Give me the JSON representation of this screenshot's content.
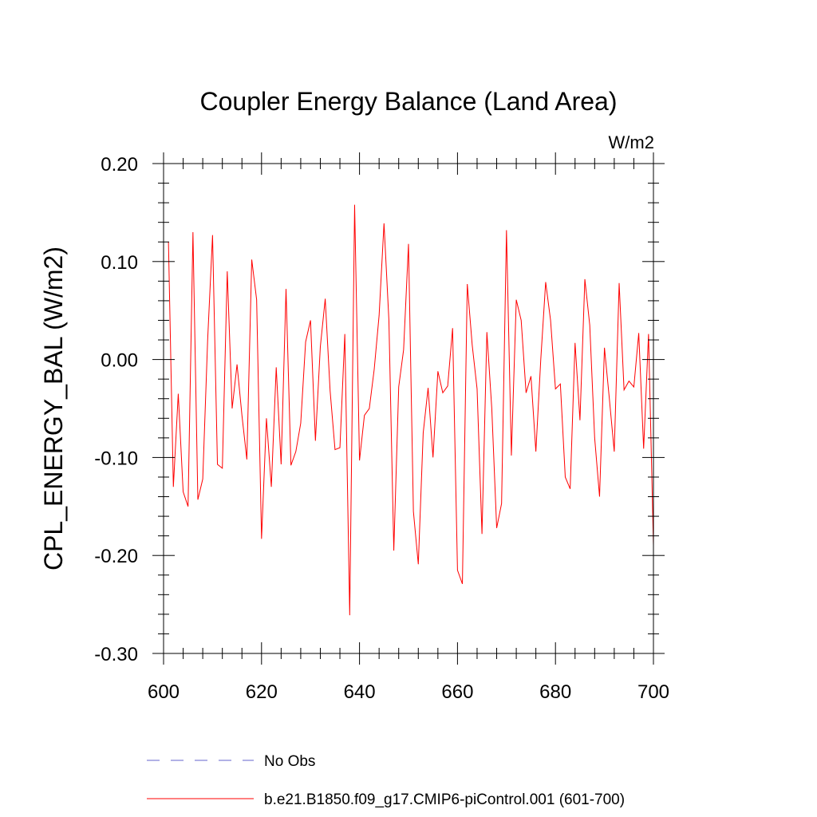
{
  "chart_data": {
    "type": "line",
    "title": "Coupler Energy Balance (Land Area)",
    "units_label": "W/m2",
    "xlabel": "",
    "ylabel": "CPL_ENERGY_BAL  (W/m2)",
    "xlim": [
      600,
      700
    ],
    "ylim": [
      -0.3,
      0.2
    ],
    "x_ticks": [
      600,
      620,
      640,
      660,
      680,
      700
    ],
    "x_tick_labels": [
      "600",
      "620",
      "640",
      "660",
      "680",
      "700"
    ],
    "y_ticks": [
      0.2,
      0.1,
      0.0,
      -0.1,
      -0.2,
      -0.3
    ],
    "y_tick_labels": [
      "0.20",
      "0.10",
      "0.00",
      "-0.10",
      "-0.20",
      "-0.30"
    ],
    "series": [
      {
        "name": "b.e21.B1850.f09_g17.CMIP6-piControl.001 (601-700)",
        "color": "#ff0000",
        "style": "solid",
        "x": [
          601,
          602,
          603,
          604,
          605,
          606,
          607,
          608,
          609,
          610,
          611,
          612,
          613,
          614,
          615,
          616,
          617,
          618,
          619,
          620,
          621,
          622,
          623,
          624,
          625,
          626,
          627,
          628,
          629,
          630,
          631,
          632,
          633,
          634,
          635,
          636,
          637,
          638,
          639,
          640,
          641,
          642,
          643,
          644,
          645,
          646,
          647,
          648,
          649,
          650,
          651,
          652,
          653,
          654,
          655,
          656,
          657,
          658,
          659,
          660,
          661,
          662,
          663,
          664,
          665,
          666,
          667,
          668,
          669,
          670,
          671,
          672,
          673,
          674,
          675,
          676,
          677,
          678,
          679,
          680,
          681,
          682,
          683,
          684,
          685,
          686,
          687,
          688,
          689,
          690,
          691,
          692,
          693,
          694,
          695,
          696,
          697,
          698,
          699,
          700
        ],
        "values": [
          0.12,
          -0.13,
          -0.035,
          -0.135,
          -0.15,
          0.13,
          -0.143,
          -0.122,
          0.02,
          0.127,
          -0.107,
          -0.111,
          0.09,
          -0.05,
          -0.005,
          -0.057,
          -0.102,
          0.102,
          0.061,
          -0.183,
          -0.06,
          -0.13,
          -0.008,
          -0.107,
          0.072,
          -0.108,
          -0.094,
          -0.065,
          0.018,
          0.04,
          -0.083,
          0.013,
          0.062,
          -0.032,
          -0.092,
          -0.09,
          0.026,
          -0.261,
          0.158,
          -0.103,
          -0.057,
          -0.05,
          -0.01,
          0.045,
          0.139,
          0.04,
          -0.195,
          -0.028,
          0.01,
          0.118,
          -0.155,
          -0.209,
          -0.075,
          -0.029,
          -0.1,
          -0.012,
          -0.034,
          -0.027,
          0.032,
          -0.215,
          -0.229,
          0.077,
          0.015,
          -0.03,
          -0.178,
          0.028,
          -0.05,
          -0.172,
          -0.147,
          0.132,
          -0.098,
          0.061,
          0.04,
          -0.034,
          -0.017,
          -0.094,
          0.0,
          0.079,
          0.04,
          -0.03,
          -0.025,
          -0.12,
          -0.132,
          0.017,
          -0.062,
          0.082,
          0.035,
          -0.08,
          -0.14,
          0.012,
          -0.04,
          -0.094,
          0.078,
          -0.031,
          -0.022,
          -0.028,
          0.027,
          -0.091,
          0.026,
          -0.19
        ]
      }
    ],
    "legend": {
      "placement": "bottom-left",
      "entries": [
        {
          "label": "No Obs",
          "color": "#6666cc",
          "style": "dashed"
        },
        {
          "label": "b.e21.B1850.f09_g17.CMIP6-piControl.001 (601-700)",
          "color": "#ff0000",
          "style": "solid"
        }
      ]
    },
    "grid": false
  }
}
